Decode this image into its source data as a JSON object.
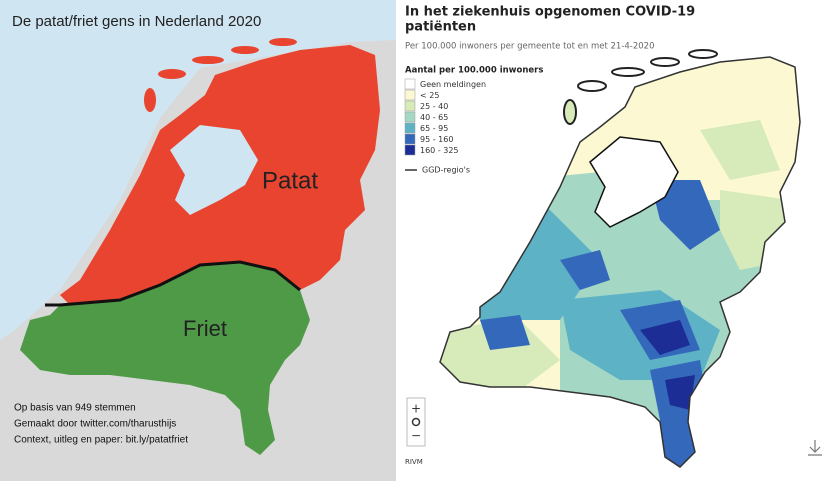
{
  "left_map": {
    "title": "De patat/friet gens in Nederland 2020",
    "regions": [
      {
        "label": "Patat",
        "color": "#e8442f"
      },
      {
        "label": "Friet",
        "color": "#4e9a47"
      }
    ],
    "credits": [
      "Op basis van 949 stemmen",
      "Gemaakt door twitter.com/tharusthijs",
      "Context, uitleg en paper: bit.ly/patatfriet"
    ]
  },
  "right_map": {
    "title_lines": [
      "In het ziekenhuis opgenomen COVID-19",
      "patiënten"
    ],
    "subtitle": "Per 100.000 inwoners per gemeente tot en met 21-4-2020",
    "legend": {
      "title": "Aantal per 100.000 inwoners",
      "items": [
        {
          "label": "Geen meldingen",
          "color": "#ffffff"
        },
        {
          "label": "< 25",
          "color": "#fbf8d2"
        },
        {
          "label": "25 - 40",
          "color": "#d6ebb9"
        },
        {
          "label": "40 - 65",
          "color": "#a4d8c4"
        },
        {
          "label": "65 - 95",
          "color": "#5eb2c6"
        },
        {
          "label": "95 - 160",
          "color": "#3468bb"
        },
        {
          "label": "160 - 325",
          "color": "#1c2e95"
        }
      ],
      "border_label": "GGD-regio's"
    },
    "zoom_controls": [
      "+",
      "−"
    ],
    "source": "RIVM"
  }
}
